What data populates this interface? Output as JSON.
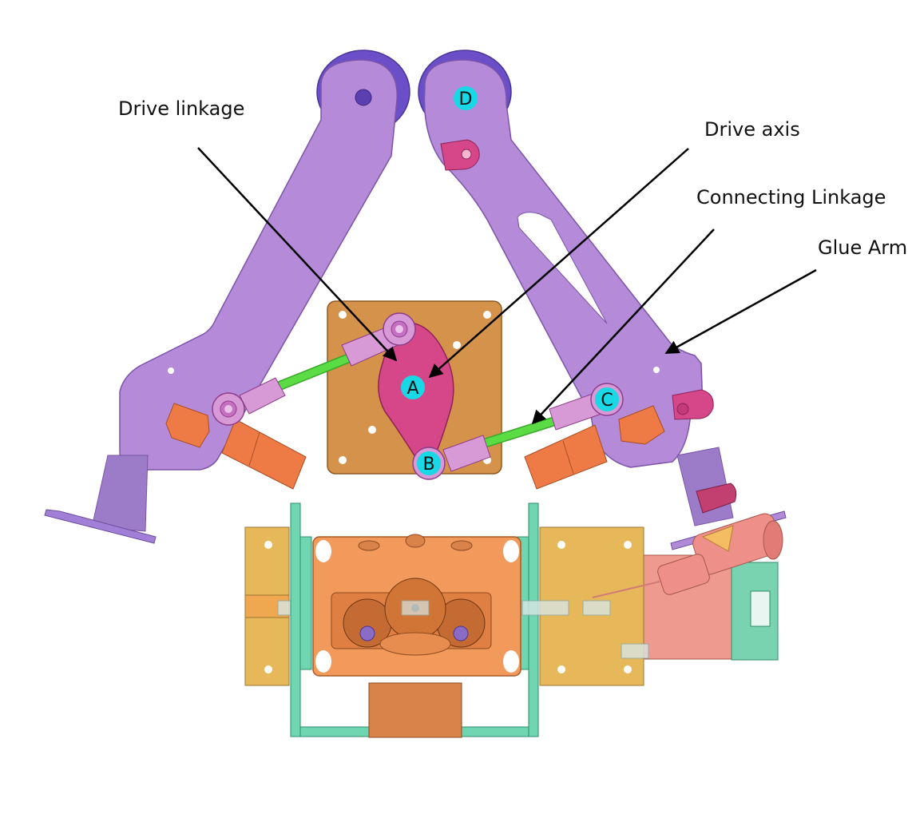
{
  "labels": {
    "drive_linkage": "Drive linkage",
    "drive_axis": "Drive axis",
    "connecting_linkage": "Connecting Linkage",
    "glue_arm": "Glue Arm"
  },
  "points": {
    "a": "A",
    "b": "B",
    "c": "C",
    "d": "D"
  },
  "colors": {
    "arm": "#b58ad9",
    "arm_stroke": "#7c55a8",
    "roller": "#6a4fc8",
    "plate": "#d4924a",
    "crank": "#d6478a",
    "rod_end": "#d79ad6",
    "rod": "#5bdc45",
    "body": "#f2995c",
    "bracket": "#6fd6b1",
    "motor_plate": "#e7b85a",
    "motor": "#ef9a8f",
    "point_marker": "#18d8e6",
    "arrow": "#000000"
  }
}
